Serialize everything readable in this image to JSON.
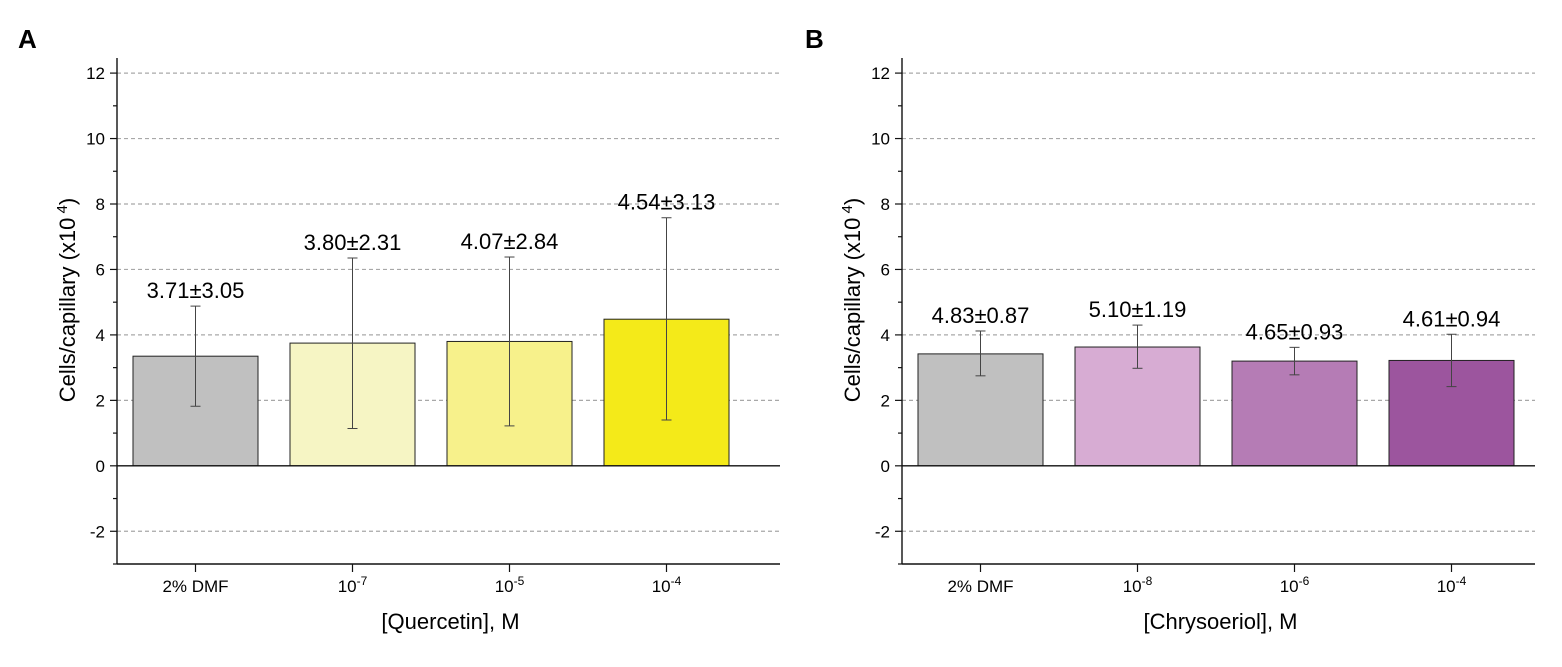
{
  "chart_data": [
    {
      "panel": "A",
      "type": "bar",
      "categories": [
        {
          "base": "2% DMF",
          "exp": ""
        },
        {
          "base": "10",
          "exp": "-7"
        },
        {
          "base": "10",
          "exp": "-5"
        },
        {
          "base": "10",
          "exp": "-4"
        }
      ],
      "values": [
        3.35,
        3.75,
        3.8,
        4.48
      ],
      "err_low": [
        1.82,
        1.14,
        1.22,
        1.4
      ],
      "err_high": [
        4.88,
        6.35,
        6.38,
        7.58
      ],
      "labels": [
        "3.71±3.05",
        "3.80±2.31",
        "4.07±2.84",
        "4.54±3.13"
      ],
      "colors": [
        "#c0c0c0",
        "#f6f5c4",
        "#f7f18b",
        "#f4ea19"
      ],
      "xlabel": "[Quercetin], M",
      "ylabel_main": "Cells/capillary (x10",
      "ylabel_exp": "4",
      "ylabel_close": ")",
      "ylim": [
        -3,
        12.4
      ],
      "yticks": [
        -2,
        0,
        2,
        4,
        6,
        8,
        10,
        12
      ],
      "grid": true
    },
    {
      "panel": "B",
      "type": "bar",
      "categories": [
        {
          "base": "2% DMF",
          "exp": ""
        },
        {
          "base": "10",
          "exp": "-8"
        },
        {
          "base": "10",
          "exp": "-6"
        },
        {
          "base": "10",
          "exp": "-4"
        }
      ],
      "values": [
        3.42,
        3.63,
        3.2,
        3.22
      ],
      "err_low": [
        2.75,
        2.98,
        2.78,
        2.42
      ],
      "err_high": [
        4.12,
        4.3,
        3.62,
        4.02
      ],
      "labels": [
        "4.83±0.87",
        "5.10±1.19",
        "4.65±0.93",
        "4.61±0.94"
      ],
      "colors": [
        "#c0c0c0",
        "#d7acd3",
        "#b57cb5",
        "#9c559e"
      ],
      "xlabel": "[Chrysoeriol], M",
      "ylabel_main": "Cells/capillary (x10",
      "ylabel_exp": "4",
      "ylabel_close": ")",
      "ylim": [
        -3,
        12.4
      ],
      "yticks": [
        -2,
        0,
        2,
        4,
        6,
        8,
        10,
        12
      ],
      "grid": true
    }
  ]
}
